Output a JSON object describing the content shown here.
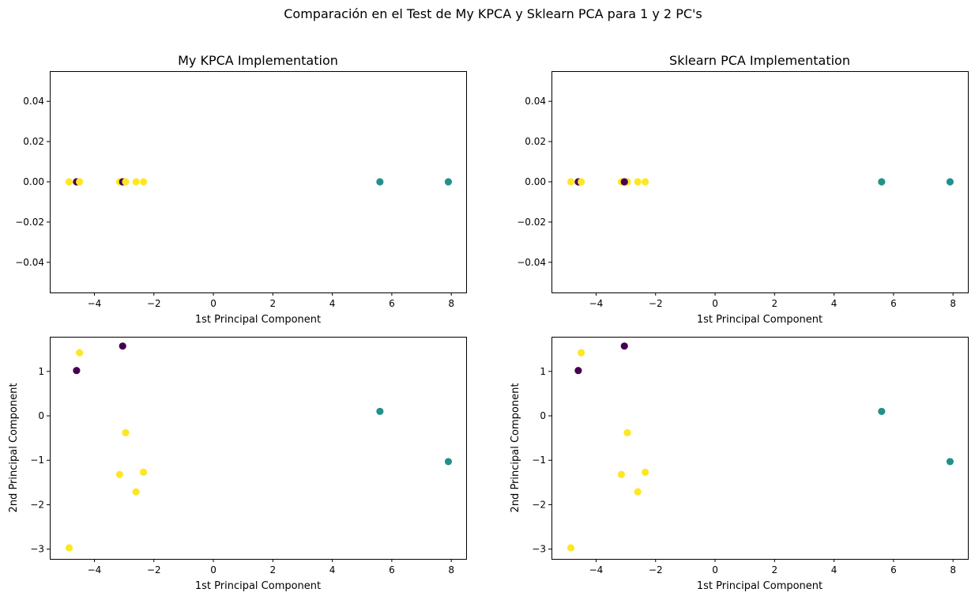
{
  "figure": {
    "suptitle": "Comparación en el Test de My KPCA y Sklearn PCA para 1 y 2 PC's"
  },
  "colors": {
    "class_0": "#440154",
    "class_1": "#21918c",
    "class_2": "#fde725",
    "axes": "#000000",
    "background": "#ffffff"
  },
  "chart_data": [
    {
      "type": "scatter",
      "title": "My KPCA Implementation",
      "xlabel": "1st Principal Component",
      "ylabel": "",
      "xlim": [
        -5.5,
        8.5
      ],
      "ylim": [
        -0.055,
        0.055
      ],
      "xticks": [
        -4,
        -2,
        0,
        2,
        4,
        6,
        8
      ],
      "xtick_labels": [
        "−4",
        "−2",
        "0",
        "2",
        "4",
        "6",
        "8"
      ],
      "yticks": [
        -0.04,
        -0.02,
        0.0,
        0.02,
        0.04
      ],
      "ytick_labels": [
        "−0.04",
        "−0.02",
        "0.00",
        "0.02",
        "0.04"
      ],
      "grid": false,
      "points": [
        {
          "x": -4.85,
          "y": 0.0,
          "class": 2
        },
        {
          "x": -4.6,
          "y": 0.0,
          "class": 0
        },
        {
          "x": -4.5,
          "y": 0.0,
          "class": 2
        },
        {
          "x": -3.15,
          "y": 0.0,
          "class": 2
        },
        {
          "x": -3.05,
          "y": 0.0,
          "class": 0
        },
        {
          "x": -2.95,
          "y": 0.0,
          "class": 2
        },
        {
          "x": -2.6,
          "y": 0.0,
          "class": 2
        },
        {
          "x": -2.35,
          "y": 0.0,
          "class": 2
        },
        {
          "x": 5.6,
          "y": 0.0,
          "class": 1
        },
        {
          "x": 7.9,
          "y": 0.0,
          "class": 1
        }
      ]
    },
    {
      "type": "scatter",
      "title": "Sklearn PCA Implementation",
      "xlabel": "1st Principal Component",
      "ylabel": "",
      "xlim": [
        -5.5,
        8.5
      ],
      "ylim": [
        -0.055,
        0.055
      ],
      "xticks": [
        -4,
        -2,
        0,
        2,
        4,
        6,
        8
      ],
      "xtick_labels": [
        "−4",
        "−2",
        "0",
        "2",
        "4",
        "6",
        "8"
      ],
      "yticks": [
        -0.04,
        -0.02,
        0.0,
        0.02,
        0.04
      ],
      "ytick_labels": [
        "−0.04",
        "−0.02",
        "0.00",
        "0.02",
        "0.04"
      ],
      "grid": false,
      "points": [
        {
          "x": -4.85,
          "y": 0.0,
          "class": 2
        },
        {
          "x": -4.6,
          "y": 0.0,
          "class": 0
        },
        {
          "x": -4.5,
          "y": 0.0,
          "class": 2
        },
        {
          "x": -3.15,
          "y": 0.0,
          "class": 2
        },
        {
          "x": -2.95,
          "y": 0.0,
          "class": 2
        },
        {
          "x": -3.05,
          "y": 0.0,
          "class": 0
        },
        {
          "x": -2.6,
          "y": 0.0,
          "class": 2
        },
        {
          "x": -2.35,
          "y": 0.0,
          "class": 2
        },
        {
          "x": 5.6,
          "y": 0.0,
          "class": 1
        },
        {
          "x": 7.9,
          "y": 0.0,
          "class": 1
        }
      ]
    },
    {
      "type": "scatter",
      "title": "",
      "xlabel": "1st Principal Component",
      "ylabel": "2nd Principal Component",
      "xlim": [
        -5.5,
        8.5
      ],
      "ylim": [
        -3.22,
        1.78
      ],
      "xticks": [
        -4,
        -2,
        0,
        2,
        4,
        6,
        8
      ],
      "xtick_labels": [
        "−4",
        "−2",
        "0",
        "2",
        "4",
        "6",
        "8"
      ],
      "yticks": [
        -3,
        -2,
        -1,
        0,
        1
      ],
      "ytick_labels": [
        "−3",
        "−2",
        "−1",
        "0",
        "1"
      ],
      "grid": false,
      "points": [
        {
          "x": -4.85,
          "y": -2.97,
          "class": 2
        },
        {
          "x": -4.6,
          "y": 1.02,
          "class": 0
        },
        {
          "x": -4.5,
          "y": 1.42,
          "class": 2
        },
        {
          "x": -3.05,
          "y": 1.57,
          "class": 0
        },
        {
          "x": -2.95,
          "y": -0.38,
          "class": 2
        },
        {
          "x": -3.15,
          "y": -1.32,
          "class": 2
        },
        {
          "x": -2.35,
          "y": -1.27,
          "class": 2
        },
        {
          "x": -2.6,
          "y": -1.71,
          "class": 2
        },
        {
          "x": 5.6,
          "y": 0.1,
          "class": 1
        },
        {
          "x": 7.9,
          "y": -1.03,
          "class": 1
        }
      ]
    },
    {
      "type": "scatter",
      "title": "",
      "xlabel": "1st Principal Component",
      "ylabel": "2nd Principal Component",
      "xlim": [
        -5.5,
        8.5
      ],
      "ylim": [
        -3.22,
        1.78
      ],
      "xticks": [
        -4,
        -2,
        0,
        2,
        4,
        6,
        8
      ],
      "xtick_labels": [
        "−4",
        "−2",
        "0",
        "2",
        "4",
        "6",
        "8"
      ],
      "yticks": [
        -3,
        -2,
        -1,
        0,
        1
      ],
      "ytick_labels": [
        "−3",
        "−2",
        "−1",
        "0",
        "1"
      ],
      "grid": false,
      "points": [
        {
          "x": -4.85,
          "y": -2.97,
          "class": 2
        },
        {
          "x": -4.6,
          "y": 1.02,
          "class": 0
        },
        {
          "x": -4.5,
          "y": 1.42,
          "class": 2
        },
        {
          "x": -3.05,
          "y": 1.57,
          "class": 0
        },
        {
          "x": -2.95,
          "y": -0.38,
          "class": 2
        },
        {
          "x": -3.15,
          "y": -1.32,
          "class": 2
        },
        {
          "x": -2.35,
          "y": -1.27,
          "class": 2
        },
        {
          "x": -2.6,
          "y": -1.71,
          "class": 2
        },
        {
          "x": 5.6,
          "y": 0.1,
          "class": 1
        },
        {
          "x": 7.9,
          "y": -1.03,
          "class": 1
        }
      ]
    }
  ]
}
